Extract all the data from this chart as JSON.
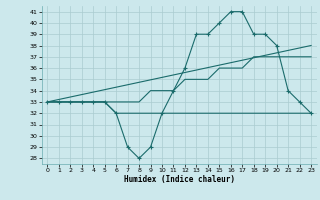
{
  "xlabel": "Humidex (Indice chaleur)",
  "background_color": "#cce8ec",
  "line_color": "#1a6b6b",
  "grid_color": "#aaccd0",
  "line1_x": [
    0,
    1,
    2,
    3,
    4,
    5,
    6,
    7,
    8,
    9,
    10,
    11,
    12,
    13,
    14,
    15,
    16,
    17,
    18,
    19,
    20,
    21,
    22,
    23
  ],
  "line1_y": [
    33,
    33,
    33,
    33,
    33,
    33,
    32,
    29,
    28,
    29,
    32,
    34,
    36,
    39,
    39,
    40,
    41,
    41,
    39,
    39,
    38,
    34,
    33,
    32
  ],
  "line2_x": [
    0,
    1,
    2,
    3,
    4,
    5,
    6,
    7,
    8,
    9,
    10,
    11,
    12,
    13,
    14,
    15,
    16,
    17,
    18,
    19,
    20,
    21,
    22,
    23
  ],
  "line2_y": [
    33,
    33,
    33,
    33,
    33,
    33,
    33,
    33,
    33,
    34,
    34,
    34,
    35,
    35,
    35,
    36,
    36,
    36,
    37,
    37,
    37,
    37,
    37,
    37
  ],
  "line3_x": [
    0,
    23
  ],
  "line3_y": [
    33,
    38
  ],
  "line4_x": [
    0,
    4,
    5,
    6,
    12,
    19,
    22,
    23
  ],
  "line4_y": [
    33,
    33,
    33,
    32,
    32,
    32,
    32,
    32
  ],
  "ylim_min": 27.5,
  "ylim_max": 41.5,
  "yticks": [
    28,
    29,
    30,
    31,
    32,
    33,
    34,
    35,
    36,
    37,
    38,
    39,
    40,
    41
  ],
  "xticks": [
    0,
    1,
    2,
    3,
    4,
    5,
    6,
    7,
    8,
    9,
    10,
    11,
    12,
    13,
    14,
    15,
    16,
    17,
    18,
    19,
    20,
    21,
    22,
    23
  ]
}
